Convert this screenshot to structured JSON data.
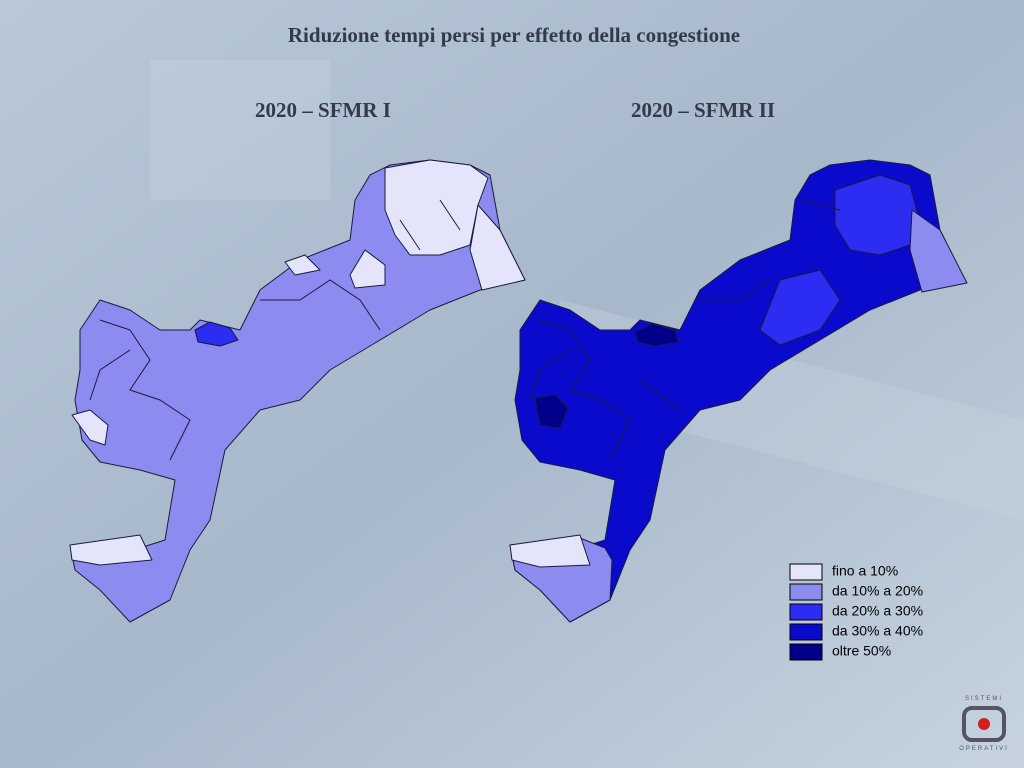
{
  "title": "Riduzione tempi persi per effetto della congestione",
  "maps": [
    {
      "title": "2020 – SFMR I"
    },
    {
      "title": "2020 – SFMR II"
    }
  ],
  "legend": [
    {
      "label": "fino a 10%",
      "color": "#e4e4fa"
    },
    {
      "label": "da 10% a 20%",
      "color": "#8c8cf0"
    },
    {
      "label": "da 20% a 30%",
      "color": "#2c2cf2"
    },
    {
      "label": "da 30% a 40%",
      "color": "#0a0acc"
    },
    {
      "label": "oltre 50%",
      "color": "#00008a"
    }
  ],
  "logo": {
    "top": "SISTEMI",
    "bottom": "OPERATIVI"
  }
}
